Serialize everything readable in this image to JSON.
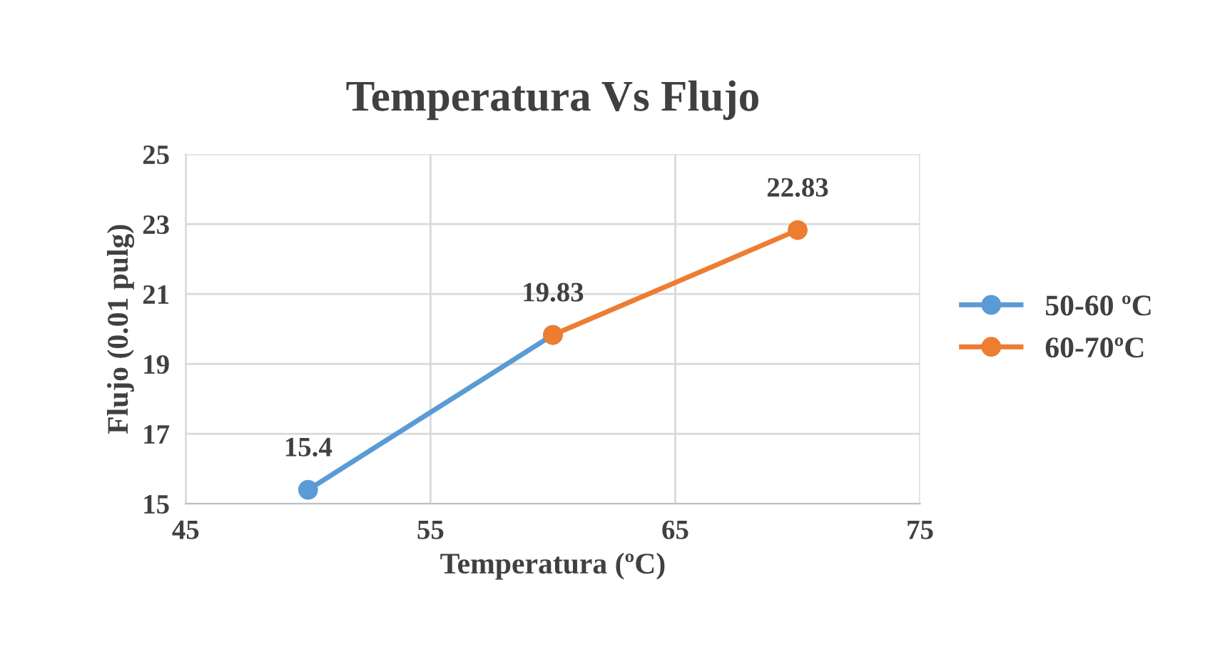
{
  "chart_data": {
    "type": "line",
    "title": "Temperatura Vs Flujo",
    "xlabel": "Temperatura (ºC)",
    "ylabel": "Flujo (0.01 pulg)",
    "xlim": [
      45,
      75
    ],
    "xticks": [
      45,
      55,
      65,
      75
    ],
    "ylim": [
      15,
      25
    ],
    "yticks": [
      15,
      17,
      19,
      21,
      23,
      25
    ],
    "grid": true,
    "legend": "right",
    "marker": "circle",
    "line_style": "solid",
    "series": [
      {
        "name": "50-60 ºC",
        "color": "#5b9bd5",
        "x": [
          50,
          60
        ],
        "values": [
          15.4,
          19.83
        ],
        "value_labels": [
          "15.4",
          null
        ]
      },
      {
        "name": "60-70ºC",
        "color": "#ed7d31",
        "x": [
          60,
          70
        ],
        "values": [
          19.83,
          22.83
        ],
        "value_labels": [
          "19.83",
          "22.83"
        ]
      }
    ]
  }
}
